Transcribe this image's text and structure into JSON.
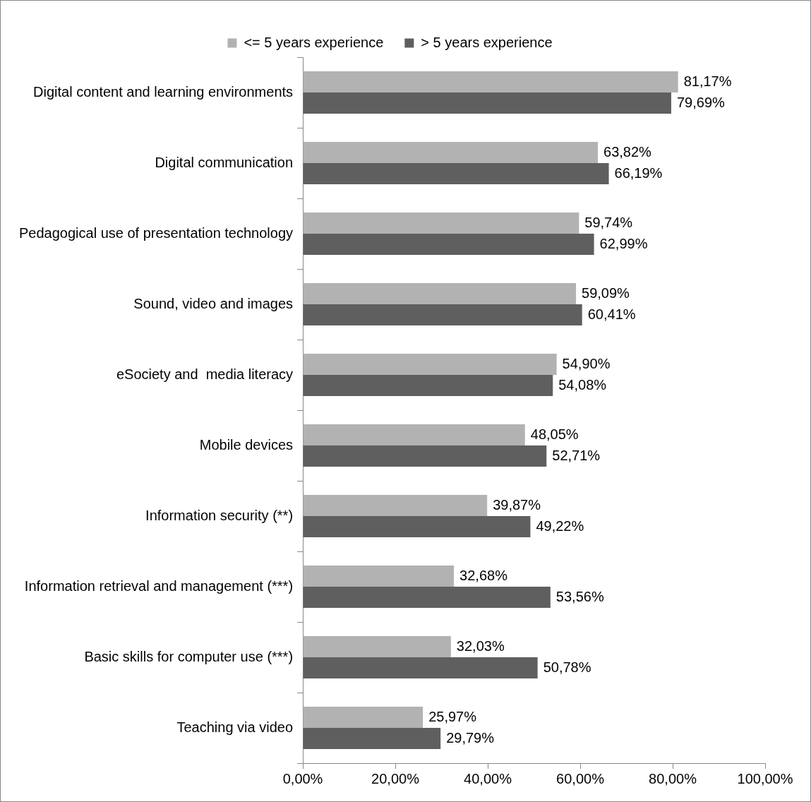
{
  "chart_data": {
    "type": "bar",
    "orientation": "horizontal",
    "legend": "top",
    "grid": false,
    "categories": [
      "Digital content and learning environments",
      "Digital communication",
      "Pedagogical use of presentation technology",
      "Sound, video and images",
      "eSociety and  media literacy",
      "Mobile devices",
      "Information security (**)",
      "Information retrieval and management (***)",
      "Basic skills for computer use (***)",
      "Teaching via video"
    ],
    "series": [
      {
        "name": "<= 5 years experience",
        "color": "#b2b2b2",
        "values": [
          81.17,
          63.82,
          59.74,
          59.09,
          54.9,
          48.05,
          39.87,
          32.68,
          32.03,
          25.97
        ],
        "value_labels": [
          "81,17%",
          "63,82%",
          "59,74%",
          "59,09%",
          "54,90%",
          "48,05%",
          "39,87%",
          "32,68%",
          "32,03%",
          "25,97%"
        ]
      },
      {
        "name": "> 5 years experience",
        "color": "#5f5f5f",
        "values": [
          79.69,
          66.19,
          62.99,
          60.41,
          54.08,
          52.71,
          49.22,
          53.56,
          50.78,
          29.79
        ],
        "value_labels": [
          "79,69%",
          "66,19%",
          "62,99%",
          "60,41%",
          "54,08%",
          "52,71%",
          "49,22%",
          "53,56%",
          "50,78%",
          "29,79%"
        ]
      }
    ],
    "xlim": [
      0,
      100
    ],
    "xticks": [
      {
        "value": 0,
        "label": "0,00%"
      },
      {
        "value": 20,
        "label": "20,00%"
      },
      {
        "value": 40,
        "label": "40,00%"
      },
      {
        "value": 60,
        "label": "60,00%"
      },
      {
        "value": 80,
        "label": "80,00%"
      },
      {
        "value": 100,
        "label": "100,00%"
      }
    ]
  }
}
